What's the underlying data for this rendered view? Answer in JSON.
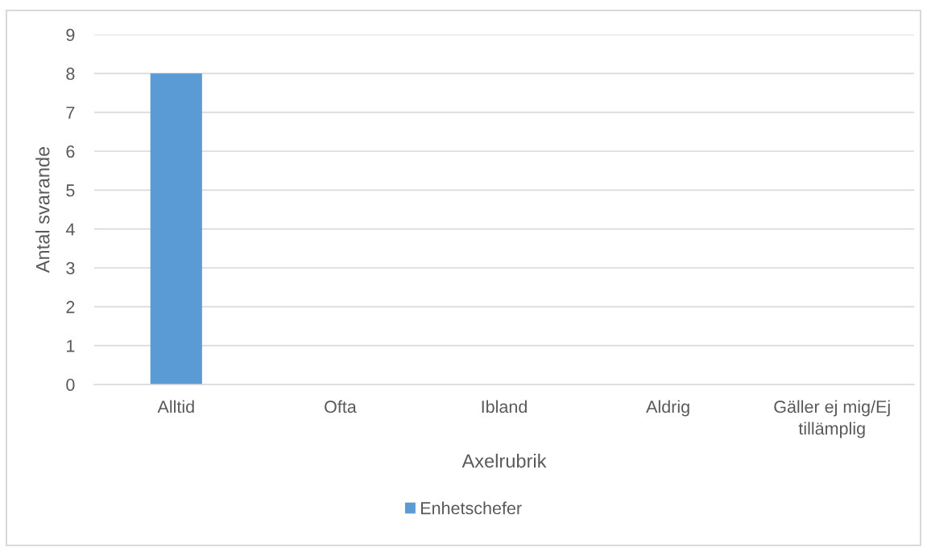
{
  "chart_data": {
    "type": "bar",
    "xlabel": "Axelrubrik",
    "ylabel": "Antal svarande",
    "categories": [
      "Alltid",
      "Ofta",
      "Ibland",
      "Aldrig",
      "Gäller ej mig/Ej tillämplig"
    ],
    "series": [
      {
        "name": "Enhetschefer",
        "color": "#5b9bd5",
        "values": [
          8,
          0,
          0,
          0,
          0
        ]
      }
    ],
    "ylim": [
      0,
      9
    ],
    "yticks": [
      0,
      1,
      2,
      3,
      4,
      5,
      6,
      7,
      8,
      9
    ],
    "grid": "y",
    "legend": "bottom"
  }
}
